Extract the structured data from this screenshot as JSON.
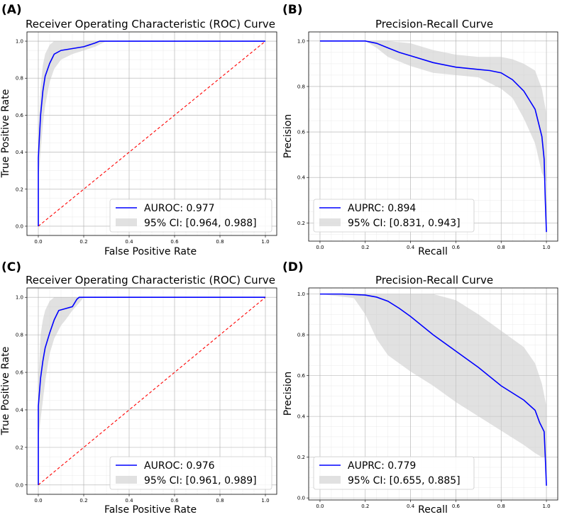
{
  "chart_data": [
    {
      "id": "A",
      "panel_label": "(A)",
      "type": "line",
      "title": "Receiver Operating Characteristic (ROC) Curve",
      "xlabel": "False Positive Rate",
      "ylabel": "True Positive Rate",
      "xlim": [
        0,
        1
      ],
      "ylim": [
        0,
        1
      ],
      "xticks": [
        "0.0",
        "0.2",
        "0.4",
        "0.6",
        "0.8",
        "1.0"
      ],
      "yticks": [
        "0.0",
        "0.2",
        "0.4",
        "0.6",
        "0.8",
        "1.0"
      ],
      "legend_position": "lower-right",
      "curve": {
        "label": "AUROC: 0.977",
        "color": "#0000ff",
        "x": [
          0,
          0,
          0.01,
          0.02,
          0.03,
          0.05,
          0.07,
          0.1,
          0.15,
          0.2,
          0.25,
          0.27,
          0.3,
          0.5,
          1.0
        ],
        "y": [
          0,
          0.37,
          0.6,
          0.73,
          0.81,
          0.88,
          0.93,
          0.95,
          0.96,
          0.97,
          0.99,
          1.0,
          1.0,
          1.0,
          1.0
        ]
      },
      "ci": {
        "label": "95% CI: [0.964, 0.988]",
        "color": "#c8c8c8",
        "x": [
          0,
          0.01,
          0.02,
          0.03,
          0.05,
          0.07,
          0.1,
          0.15,
          0.2,
          0.25,
          0.3,
          1.0
        ],
        "lower": [
          0.25,
          0.4,
          0.55,
          0.65,
          0.78,
          0.85,
          0.9,
          0.93,
          0.95,
          0.97,
          1.0,
          1.0
        ],
        "upper": [
          0.5,
          0.75,
          0.87,
          0.93,
          0.98,
          1.0,
          1.0,
          1.0,
          1.0,
          1.0,
          1.0,
          1.0
        ]
      },
      "diagonal": {
        "color": "#ff0000",
        "x": [
          0,
          1
        ],
        "y": [
          0,
          1
        ]
      }
    },
    {
      "id": "B",
      "panel_label": "(B)",
      "type": "line",
      "title": "Precision-Recall Curve",
      "xlabel": "Recall",
      "ylabel": "Precision",
      "xlim": [
        0,
        1
      ],
      "ylim": [
        0.12,
        1.04
      ],
      "xticks": [
        "0.0",
        "0.2",
        "0.4",
        "0.6",
        "0.8",
        "1.0"
      ],
      "yticks": [
        "0.2",
        "0.4",
        "0.6",
        "0.8",
        "1.0"
      ],
      "legend_position": "lower-left",
      "curve": {
        "label": "AUPRC: 0.894",
        "color": "#0000ff",
        "x": [
          0,
          0.1,
          0.2,
          0.25,
          0.3,
          0.35,
          0.4,
          0.5,
          0.6,
          0.7,
          0.75,
          0.8,
          0.85,
          0.9,
          0.95,
          0.98,
          0.99,
          0.995,
          1.0
        ],
        "y": [
          1.0,
          1.0,
          1.0,
          0.99,
          0.97,
          0.95,
          0.935,
          0.905,
          0.885,
          0.875,
          0.87,
          0.86,
          0.83,
          0.78,
          0.7,
          0.58,
          0.48,
          0.3,
          0.16
        ]
      },
      "ci": {
        "label": "95% CI: [0.831, 0.943]",
        "color": "#c8c8c8",
        "x": [
          0,
          0.2,
          0.25,
          0.3,
          0.4,
          0.5,
          0.6,
          0.7,
          0.8,
          0.85,
          0.9,
          0.95,
          0.98,
          1.0
        ],
        "lower": [
          1.0,
          1.0,
          0.97,
          0.93,
          0.89,
          0.86,
          0.85,
          0.84,
          0.79,
          0.75,
          0.66,
          0.55,
          0.42,
          0.38
        ],
        "upper": [
          1.0,
          1.0,
          1.0,
          1.0,
          0.99,
          0.96,
          0.94,
          0.93,
          0.93,
          0.92,
          0.9,
          0.87,
          0.79,
          0.68
        ]
      }
    },
    {
      "id": "C",
      "panel_label": "(C)",
      "type": "line",
      "title": "Receiver Operating Characteristic (ROC) Curve",
      "xlabel": "False Positive Rate",
      "ylabel": "True Positive Rate",
      "xlim": [
        0,
        1
      ],
      "ylim": [
        0,
        1
      ],
      "xticks": [
        "0.0",
        "0.2",
        "0.4",
        "0.6",
        "0.8",
        "1.0"
      ],
      "yticks": [
        "0.0",
        "0.2",
        "0.4",
        "0.6",
        "0.8",
        "1.0"
      ],
      "legend_position": "lower-right",
      "curve": {
        "label": "AUROC: 0.976",
        "color": "#0000ff",
        "x": [
          0,
          0,
          0.01,
          0.02,
          0.03,
          0.05,
          0.07,
          0.09,
          0.12,
          0.15,
          0.17,
          0.18,
          0.2,
          1.0
        ],
        "y": [
          0,
          0.42,
          0.57,
          0.66,
          0.73,
          0.81,
          0.88,
          0.93,
          0.94,
          0.95,
          0.99,
          1.0,
          1.0,
          1.0
        ]
      },
      "ci": {
        "label": "95% CI: [0.961, 0.989]",
        "color": "#c8c8c8",
        "x": [
          0,
          0.01,
          0.02,
          0.03,
          0.05,
          0.07,
          0.1,
          0.12,
          0.15,
          0.18,
          0.2,
          1.0
        ],
        "lower": [
          0.25,
          0.35,
          0.45,
          0.55,
          0.7,
          0.78,
          0.85,
          0.88,
          0.93,
          0.97,
          1.0,
          1.0
        ],
        "upper": [
          0.55,
          0.8,
          0.88,
          0.93,
          0.98,
          1.0,
          1.0,
          1.0,
          1.0,
          1.0,
          1.0,
          1.0
        ]
      },
      "diagonal": {
        "color": "#ff0000",
        "x": [
          0,
          1
        ],
        "y": [
          0,
          1
        ]
      }
    },
    {
      "id": "D",
      "panel_label": "(D)",
      "type": "line",
      "title": "Precision-Recall Curve",
      "xlabel": "Recall",
      "ylabel": "Precision",
      "xlim": [
        0,
        1
      ],
      "ylim": [
        -0.01,
        1.03
      ],
      "xticks": [
        "0.0",
        "0.2",
        "0.4",
        "0.6",
        "0.8",
        "1.0"
      ],
      "yticks": [
        "0.0",
        "0.2",
        "0.4",
        "0.6",
        "0.8",
        "1.0"
      ],
      "legend_position": "lower-left",
      "curve": {
        "label": "AUPRC: 0.779",
        "color": "#0000ff",
        "x": [
          0,
          0.1,
          0.2,
          0.25,
          0.3,
          0.35,
          0.4,
          0.5,
          0.6,
          0.7,
          0.8,
          0.9,
          0.95,
          0.97,
          0.99,
          0.995,
          1.0
        ],
        "y": [
          1.0,
          1.0,
          0.995,
          0.985,
          0.965,
          0.93,
          0.89,
          0.8,
          0.72,
          0.64,
          0.55,
          0.48,
          0.43,
          0.37,
          0.325,
          0.2,
          0.06
        ]
      },
      "ci": {
        "label": "95% CI: [0.655, 0.885]",
        "color": "#c8c8c8",
        "x": [
          0,
          0.15,
          0.2,
          0.25,
          0.3,
          0.4,
          0.5,
          0.6,
          0.7,
          0.8,
          0.9,
          0.95,
          0.98,
          1.0
        ],
        "lower": [
          1.0,
          0.98,
          0.9,
          0.78,
          0.7,
          0.62,
          0.55,
          0.47,
          0.4,
          0.33,
          0.26,
          0.22,
          0.2,
          0.2
        ],
        "upper": [
          1.0,
          1.0,
          1.0,
          1.0,
          1.0,
          1.0,
          1.0,
          0.97,
          0.9,
          0.82,
          0.74,
          0.66,
          0.56,
          0.45
        ]
      }
    }
  ]
}
